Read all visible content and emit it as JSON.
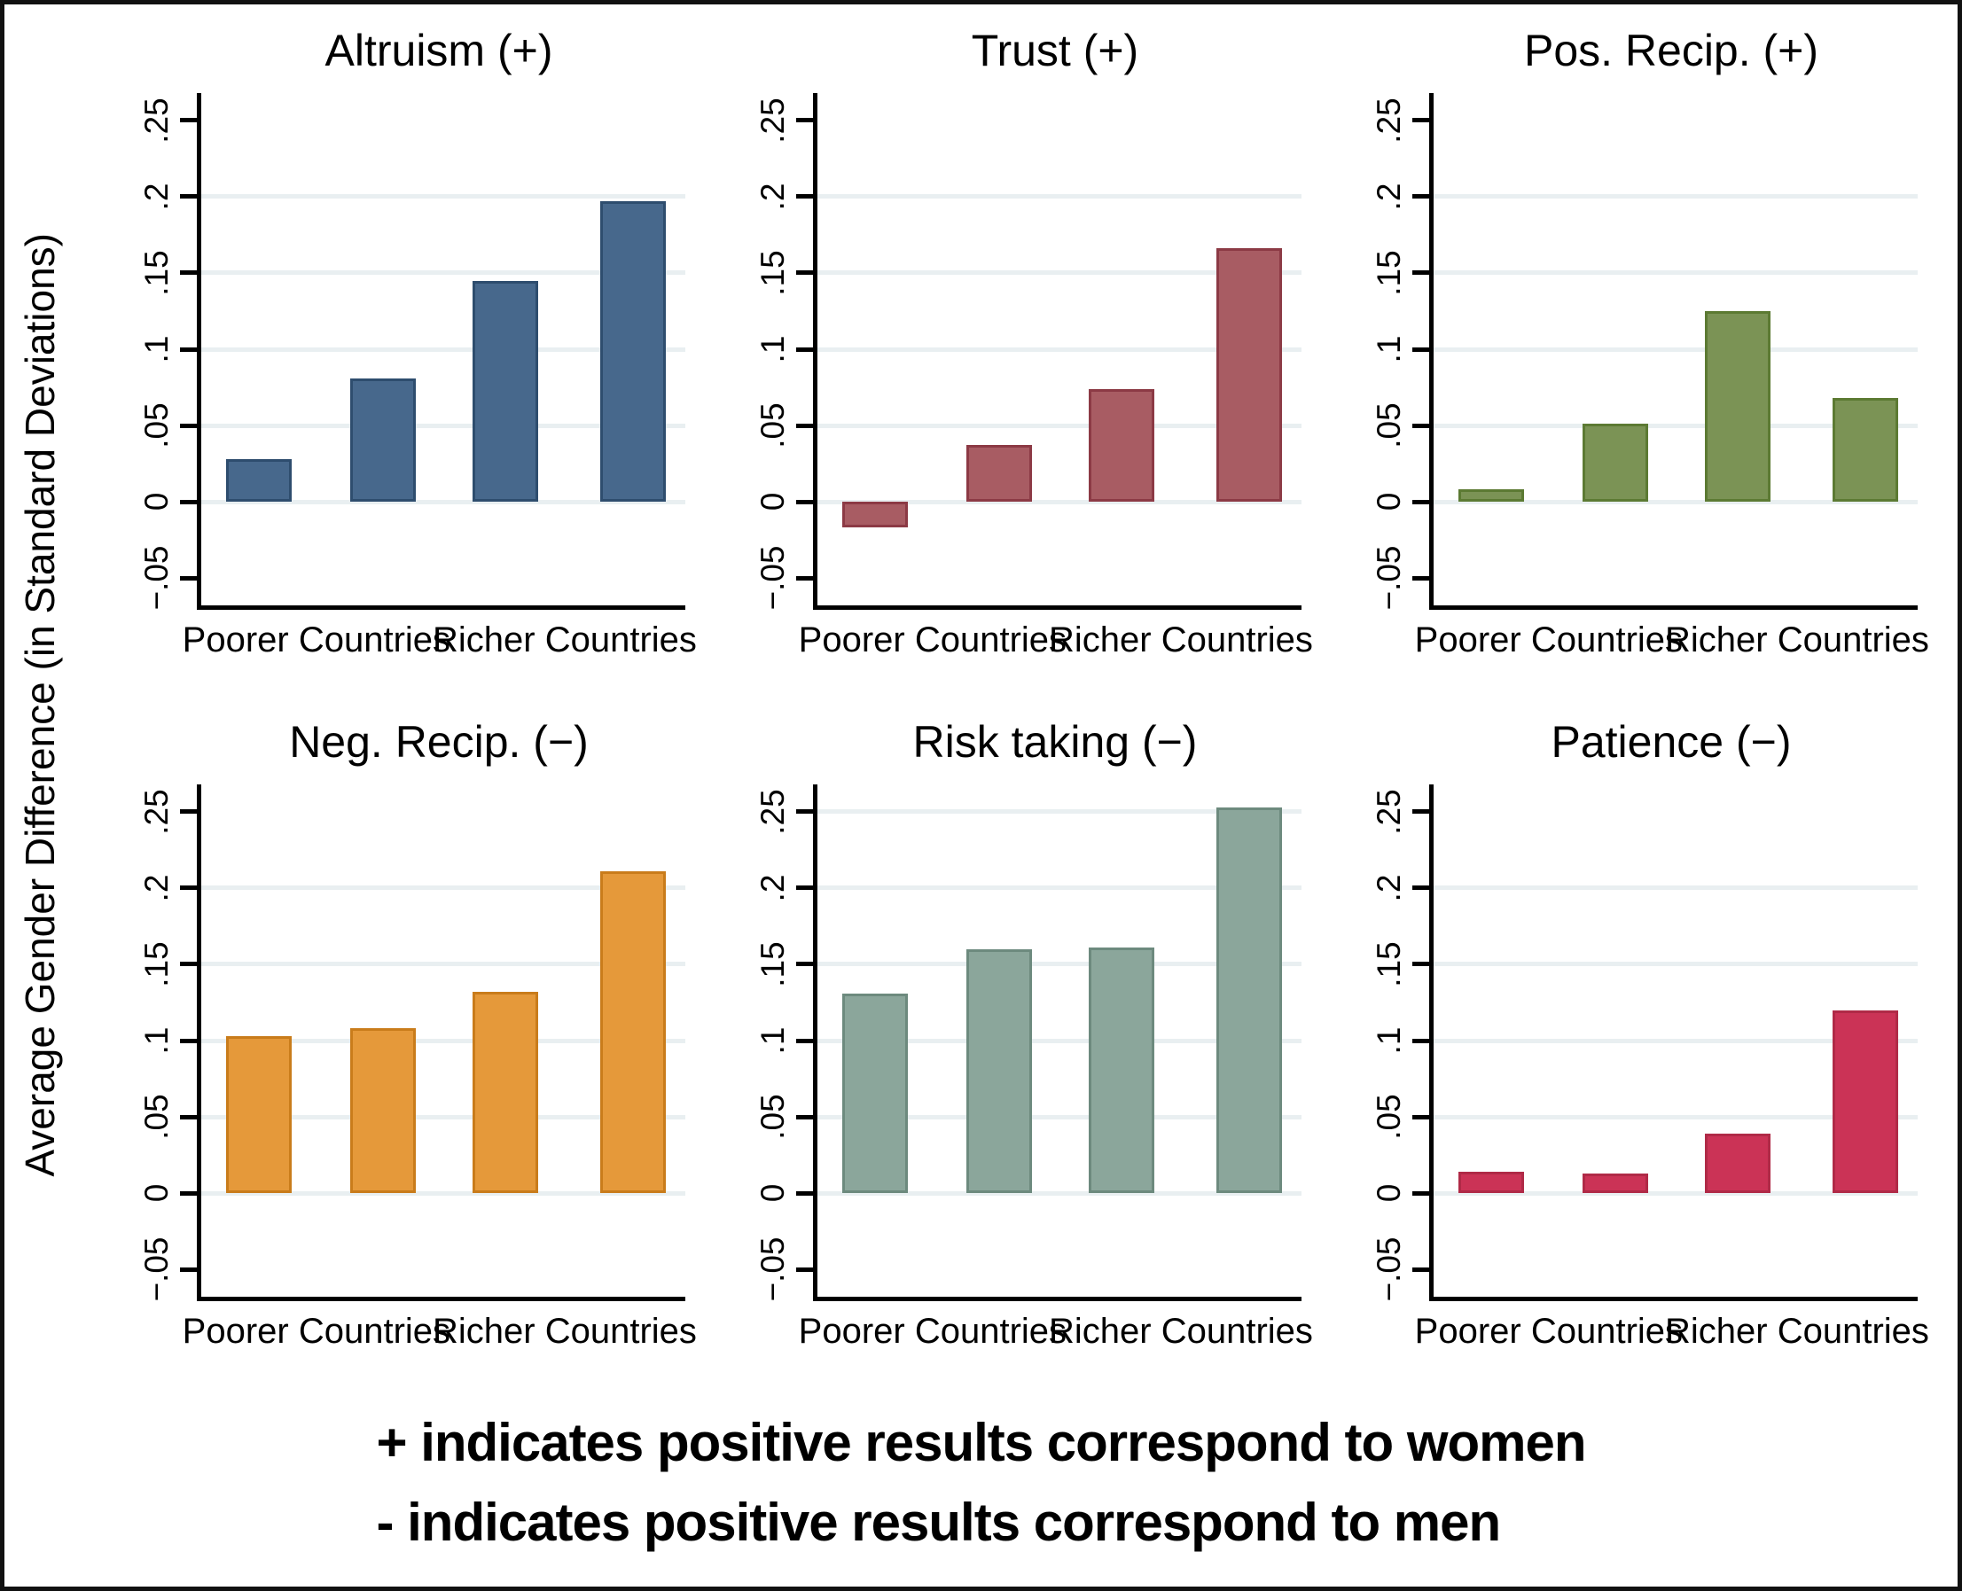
{
  "figure": {
    "ylabel": "Average Gender Difference (in Standard Deviations)",
    "caption": {
      "line1": "+ indicates positive results correspond to women",
      "line2": "- indicates positive results correspond to men"
    },
    "colors": {
      "gridline": "#e9eff1",
      "axis": "#000000",
      "background": "#ffffff"
    }
  },
  "chart_data": {
    "type": "bar",
    "layout": "small-multiples 2 rows x 3 cols",
    "x_categories": [
      "Poorer Countries",
      "Richer Countries"
    ],
    "bars_per_category": 2,
    "y_ticks": {
      "values": [
        0.25,
        0.2,
        0.15,
        0.1,
        0.05,
        0,
        -0.05
      ],
      "labels": [
        ".25",
        ".2",
        ".15",
        ".1",
        ".05",
        "0",
        "−.05"
      ]
    },
    "ylim": [
      -0.068,
      0.268
    ],
    "grid": "horizontal light gridlines at labeled ticks",
    "panels": [
      {
        "slug": "altruism",
        "title": "Altruism (+)",
        "fill": "#47688c",
        "stroke": "#2e4d6e",
        "values": [
          0.028,
          0.081,
          0.145,
          0.197
        ],
        "gridlines": [
          0,
          0.05,
          0.1,
          0.15,
          0.2
        ]
      },
      {
        "slug": "trust",
        "title": "Trust (+)",
        "fill": "#a85c63",
        "stroke": "#8c3a45",
        "values": [
          -0.017,
          0.037,
          0.074,
          0.166
        ],
        "gridlines": [
          0,
          0.05,
          0.1,
          0.15,
          0.2
        ]
      },
      {
        "slug": "pos-recip",
        "title": "Pos. Recip. (+)",
        "fill": "#7b9355",
        "stroke": "#5c7a33",
        "values": [
          0.008,
          0.051,
          0.125,
          0.068
        ],
        "gridlines": [
          0,
          0.05,
          0.1,
          0.15,
          0.2
        ]
      },
      {
        "slug": "neg-recip",
        "title": "Neg. Recip. (−)",
        "fill": "#e5993a",
        "stroke": "#c97c1b",
        "values": [
          0.103,
          0.108,
          0.132,
          0.211
        ],
        "gridlines": [
          0,
          0.05,
          0.1,
          0.15,
          0.2
        ]
      },
      {
        "slug": "risk-taking",
        "title": "Risk taking (−)",
        "fill": "#8ba69b",
        "stroke": "#6d8a7e",
        "values": [
          0.131,
          0.16,
          0.161,
          0.253
        ],
        "gridlines": [
          0,
          0.05,
          0.1,
          0.15,
          0.2,
          0.25
        ]
      },
      {
        "slug": "patience",
        "title": "Patience (−)",
        "fill": "#cb3356",
        "stroke": "#b02a47",
        "values": [
          0.014,
          0.013,
          0.039,
          0.12
        ],
        "gridlines": [
          0,
          0.05,
          0.1,
          0.15,
          0.2
        ]
      }
    ]
  }
}
